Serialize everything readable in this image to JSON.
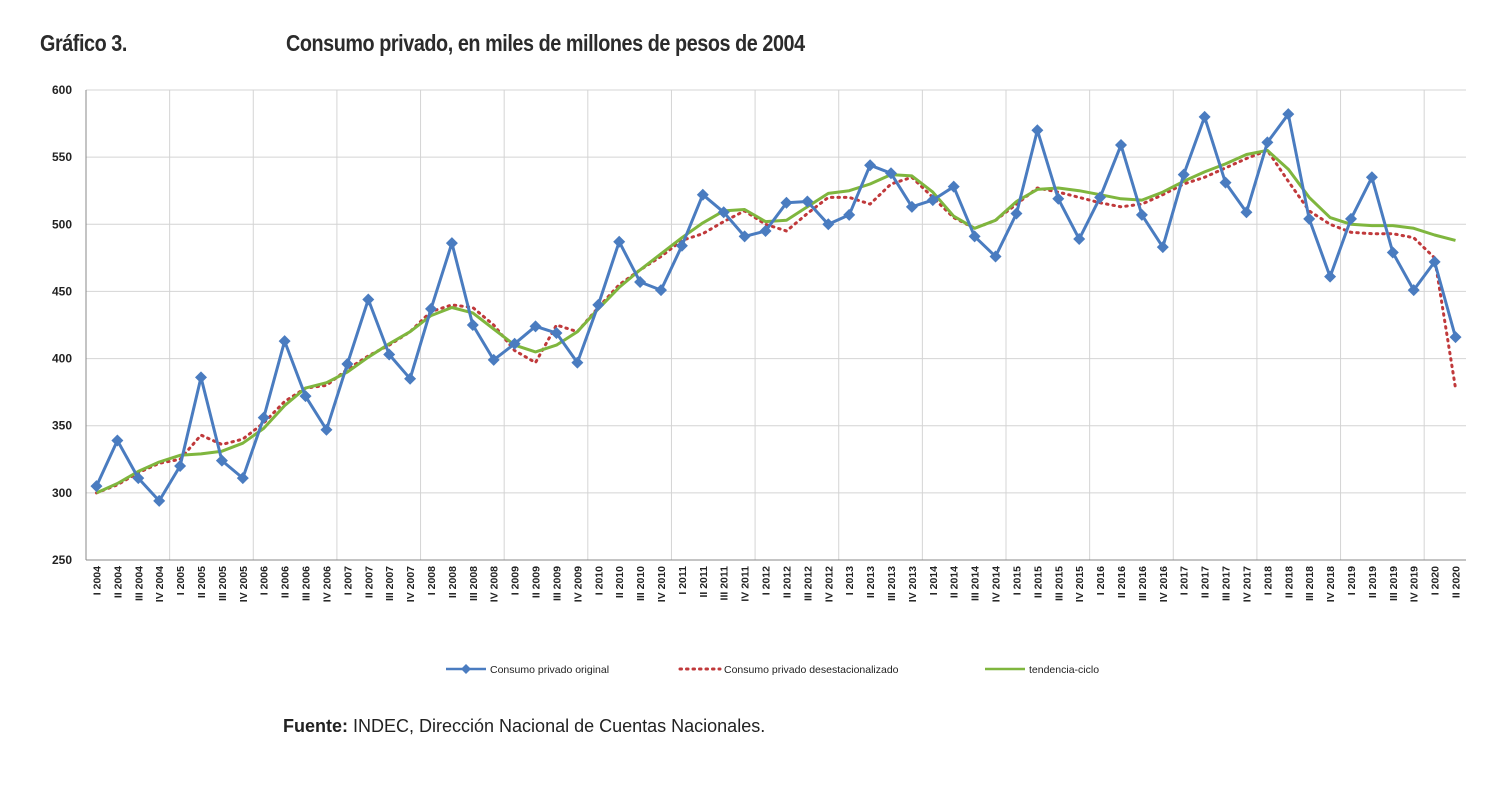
{
  "header": {
    "label": "Gráfico 3.",
    "title": "Consumo privado, en miles de millones de pesos de 2004"
  },
  "source": {
    "prefix": "Fuente:",
    "text": "INDEC, Dirección Nacional de Cuentas Nacionales."
  },
  "chart_data": {
    "type": "line",
    "title": "Consumo privado, en miles de millones de pesos de 2004",
    "ylim": [
      250,
      600
    ],
    "yticks": [
      250,
      300,
      350,
      400,
      450,
      500,
      550,
      600
    ],
    "grid": true,
    "legend_position": "bottom",
    "categories": [
      "I 2004",
      "II 2004",
      "III 2004",
      "IV 2004",
      "I 2005",
      "II 2005",
      "III 2005",
      "IV 2005",
      "I 2006",
      "II 2006",
      "III 2006",
      "IV 2006",
      "I 2007",
      "II 2007",
      "III 2007",
      "IV 2007",
      "I 2008",
      "II 2008",
      "III 2008",
      "IV 2008",
      "I 2009",
      "II 2009",
      "III 2009",
      "IV 2009",
      "I 2010",
      "II 2010",
      "III 2010",
      "IV 2010",
      "I 2011",
      "II 2011",
      "III 2011",
      "IV 2011",
      "I 2012",
      "II 2012",
      "III 2012",
      "IV 2012",
      "I 2013",
      "II 2013",
      "III 2013",
      "IV 2013",
      "I 2014",
      "II 2014",
      "III 2014",
      "IV 2014",
      "I 2015",
      "II 2015",
      "III 2015",
      "IV 2015",
      "I 2016",
      "II 2016",
      "III 2016",
      "IV 2016",
      "I 2017",
      "II 2017",
      "III 2017",
      "IV 2017",
      "I 2018",
      "II 2018",
      "III 2018",
      "IV 2018",
      "I 2019",
      "II 2019",
      "III 2019",
      "IV 2019",
      "I 2020",
      "II 2020"
    ],
    "series": [
      {
        "name": "Consumo privado original",
        "color": "#4a7cc0",
        "style": "line-diamond",
        "values": [
          305,
          339,
          311,
          294,
          320,
          386,
          324,
          311,
          356,
          413,
          372,
          347,
          396,
          444,
          403,
          385,
          437,
          486,
          425,
          399,
          411,
          424,
          419,
          397,
          440,
          487,
          457,
          451,
          484,
          522,
          509,
          491,
          495,
          516,
          517,
          500,
          507,
          544,
          538,
          513,
          518,
          528,
          491,
          476,
          508,
          570,
          519,
          489,
          520,
          559,
          507,
          483,
          537,
          580,
          531,
          509,
          561,
          582,
          504,
          461,
          504,
          535,
          479,
          451,
          472,
          416
        ]
      },
      {
        "name": "Consumo privado desestacionalizado",
        "color": "#c0393b",
        "style": "dotted",
        "values": [
          300,
          306,
          315,
          322,
          325,
          343,
          336,
          340,
          352,
          368,
          378,
          380,
          392,
          402,
          410,
          420,
          435,
          440,
          438,
          425,
          406,
          397,
          425,
          420,
          438,
          455,
          466,
          476,
          488,
          493,
          502,
          510,
          500,
          495,
          508,
          520,
          520,
          515,
          530,
          535,
          520,
          505,
          497,
          503,
          515,
          527,
          524,
          520,
          516,
          513,
          515,
          522,
          530,
          535,
          542,
          549,
          555,
          532,
          510,
          500,
          494,
          493,
          493,
          490,
          475,
          378
        ]
      },
      {
        "name": "tendencia-ciclo",
        "color": "#7fb63e",
        "style": "line",
        "values": [
          300,
          307,
          316,
          323,
          328,
          329,
          331,
          337,
          348,
          365,
          378,
          382,
          390,
          401,
          411,
          420,
          432,
          438,
          434,
          422,
          410,
          405,
          410,
          420,
          437,
          453,
          466,
          478,
          490,
          501,
          510,
          511,
          502,
          503,
          513,
          523,
          525,
          530,
          537,
          536,
          524,
          506,
          497,
          503,
          517,
          526,
          527,
          525,
          522,
          519,
          518,
          524,
          532,
          539,
          545,
          552,
          555,
          541,
          520,
          505,
          500,
          499,
          499,
          497,
          492,
          488
        ]
      }
    ]
  }
}
